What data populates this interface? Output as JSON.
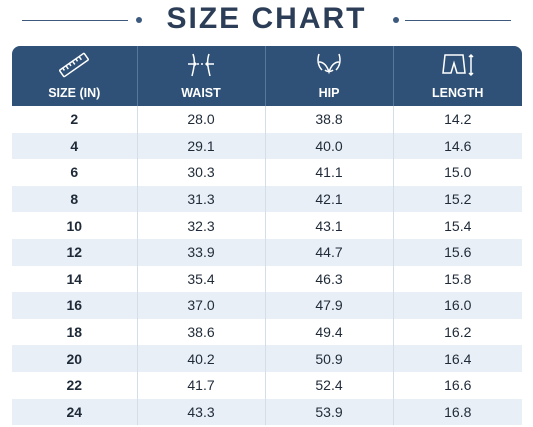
{
  "header": {
    "title": "SIZE CHART"
  },
  "table": {
    "columns": [
      "SIZE (IN)",
      "WAIST",
      "HIP",
      "LENGTH"
    ],
    "rows": [
      [
        "2",
        "28.0",
        "38.8",
        "14.2"
      ],
      [
        "4",
        "29.1",
        "40.0",
        "14.6"
      ],
      [
        "6",
        "30.3",
        "41.1",
        "15.0"
      ],
      [
        "8",
        "31.3",
        "42.1",
        "15.2"
      ],
      [
        "10",
        "32.3",
        "43.1",
        "15.4"
      ],
      [
        "12",
        "33.9",
        "44.7",
        "15.6"
      ],
      [
        "14",
        "35.4",
        "46.3",
        "15.8"
      ],
      [
        "16",
        "37.0",
        "47.9",
        "16.0"
      ],
      [
        "18",
        "38.6",
        "49.4",
        "16.2"
      ],
      [
        "20",
        "40.2",
        "50.9",
        "16.4"
      ],
      [
        "22",
        "41.7",
        "52.4",
        "16.6"
      ],
      [
        "24",
        "43.3",
        "53.9",
        "16.8"
      ]
    ]
  }
}
